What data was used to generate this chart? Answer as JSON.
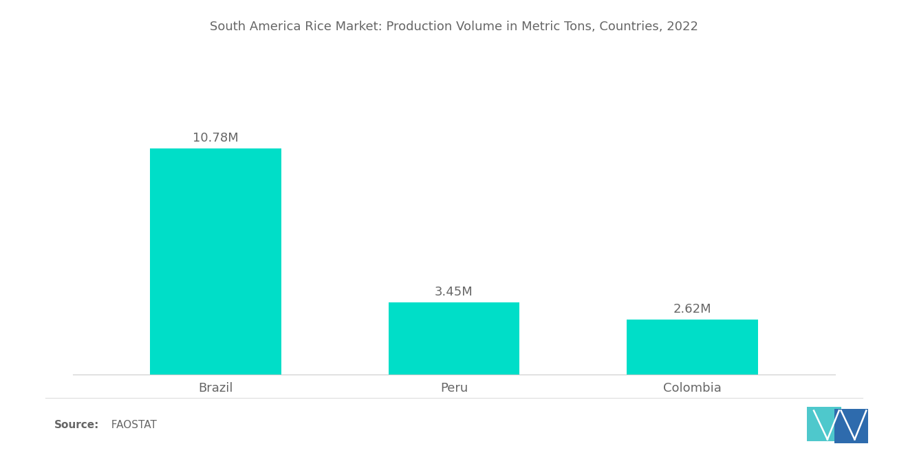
{
  "title": "South America Rice Market: Production Volume in Metric Tons, Countries, 2022",
  "categories": [
    "Brazil",
    "Peru",
    "Colombia"
  ],
  "values": [
    10.78,
    3.45,
    2.62
  ],
  "labels": [
    "10.78M",
    "3.45M",
    "2.62M"
  ],
  "bar_color": "#00DEC8",
  "background_color": "#ffffff",
  "title_fontsize": 13,
  "label_fontsize": 13,
  "tick_fontsize": 13,
  "source_fontsize": 11,
  "ylim": [
    0,
    13.5
  ],
  "bar_positions": [
    0,
    1,
    2
  ],
  "bar_width": 0.55,
  "logo_teal": "#4EC8CC",
  "logo_blue": "#2E6BAD",
  "source_bold": "Source:",
  "source_normal": "  FAOSTAT",
  "separator_color": "#dddddd",
  "text_color": "#666666"
}
